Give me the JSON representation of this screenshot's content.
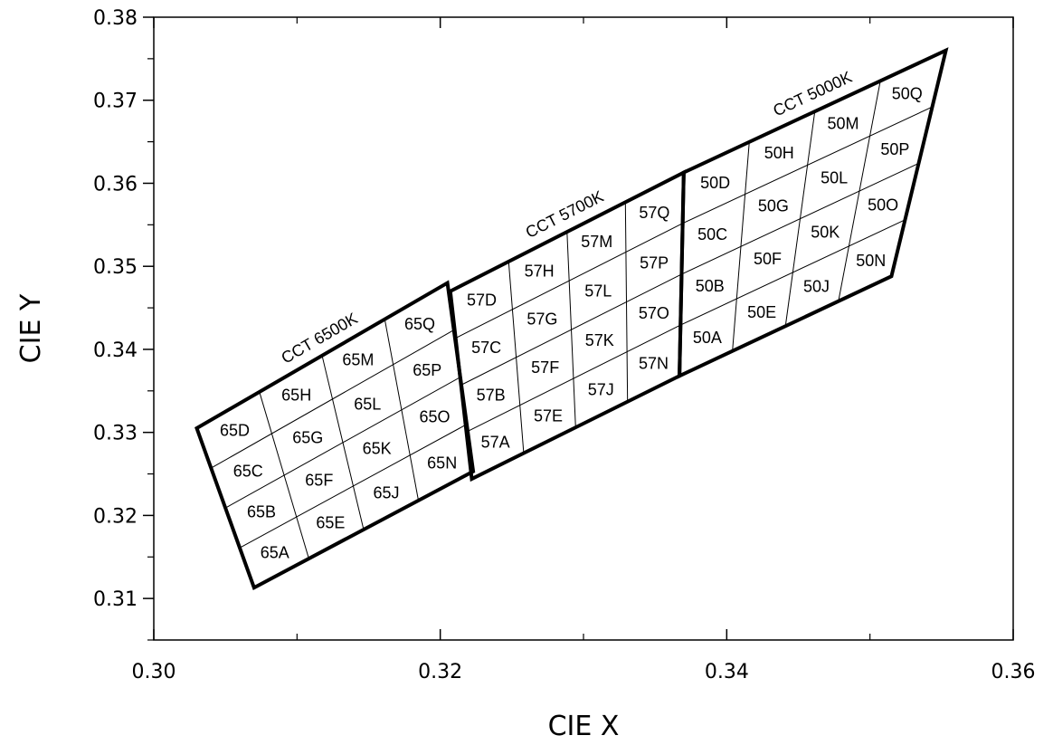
{
  "chart_data": {
    "type": "scatter",
    "xlabel": "CIE X",
    "ylabel": "CIE Y",
    "xlim": [
      0.3,
      0.36
    ],
    "ylim": [
      0.305,
      0.38
    ],
    "xticks": [
      "0.30",
      "0.32",
      "0.34",
      "0.36"
    ],
    "yticks": [
      "0.31",
      "0.32",
      "0.33",
      "0.34",
      "0.35",
      "0.36",
      "0.37",
      "0.38"
    ],
    "grid": false,
    "groups": [
      {
        "label": "CCT 6500K",
        "corners": {
          "top_left": [
            0.303,
            0.3305
          ],
          "top_right": [
            0.3205,
            0.348
          ],
          "bottom_right": [
            0.3223,
            0.3253
          ],
          "bottom_left": [
            0.307,
            0.3113
          ]
        },
        "bins": [
          [
            "65A",
            "65E",
            "65J",
            "65N"
          ],
          [
            "65B",
            "65F",
            "65K",
            "65O"
          ],
          [
            "65C",
            "65G",
            "65L",
            "65P"
          ],
          [
            "65D",
            "65H",
            "65M",
            "65Q"
          ]
        ]
      },
      {
        "label": "CCT 5700K",
        "corners": {
          "top_left": [
            0.3207,
            0.347
          ],
          "top_right": [
            0.337,
            0.3613
          ],
          "bottom_right": [
            0.3367,
            0.3368
          ],
          "bottom_left": [
            0.3222,
            0.3244
          ]
        },
        "bins": [
          [
            "57A",
            "57E",
            "57J",
            "57N"
          ],
          [
            "57B",
            "57F",
            "57K",
            "57O"
          ],
          [
            "57C",
            "57G",
            "57L",
            "57P"
          ],
          [
            "57D",
            "57H",
            "57M",
            "57Q"
          ]
        ]
      },
      {
        "label": "CCT 5000K",
        "corners": {
          "top_left": [
            0.337,
            0.3613
          ],
          "top_right": [
            0.3553,
            0.376
          ],
          "bottom_right": [
            0.3515,
            0.3488
          ],
          "bottom_left": [
            0.3367,
            0.3368
          ]
        },
        "bins": [
          [
            "50A",
            "50E",
            "50J",
            "50N"
          ],
          [
            "50B",
            "50F",
            "50K",
            "50O"
          ],
          [
            "50C",
            "50G",
            "50L",
            "50P"
          ],
          [
            "50D",
            "50H",
            "50M",
            "50Q"
          ]
        ]
      }
    ]
  }
}
